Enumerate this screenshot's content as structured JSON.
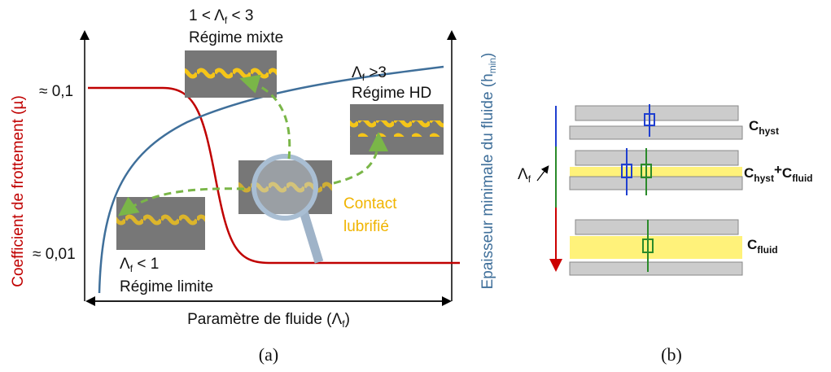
{
  "panel_a": {
    "y_axis_left": "Coefficient de frottement (µ)",
    "y_axis_right": {
      "main": "Epaisseur minimale du fluide (h",
      "sub": "min",
      "end": ")"
    },
    "x_axis": {
      "main": "Paramètre de fluide (Λ",
      "sub": "f",
      "end": ")"
    },
    "y_ticks": [
      "≈ 0,1",
      "≈ 0,01"
    ],
    "regimes": [
      {
        "condition": [
          "1 < Λ",
          "f",
          " < 3"
        ],
        "name": "Régime mixte"
      },
      {
        "condition": [
          "Λ",
          "f",
          " >3"
        ],
        "name": "Régime HD"
      },
      {
        "condition": [
          "Λ",
          "f",
          " < 1"
        ],
        "name": "Régime limite"
      }
    ],
    "contact": [
      "Contact",
      "lubrifié"
    ],
    "caption": "(a)"
  },
  "panel_b": {
    "axis_label": [
      "Λ",
      "f"
    ],
    "rows": [
      [
        "C",
        "hyst"
      ],
      [
        "C",
        "hyst",
        "+",
        "C",
        "fluid"
      ],
      [
        "C",
        "fluid"
      ]
    ],
    "caption": "(b)"
  }
}
